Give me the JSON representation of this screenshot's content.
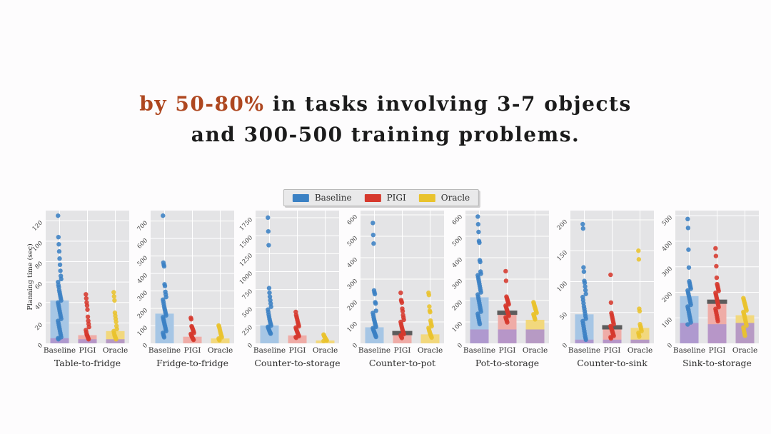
{
  "slide": {
    "heading": {
      "accent_text": "by 50-80%",
      "line1_rest": " in tasks involving 3-7 objects",
      "line2": "and 300-500 training problems.",
      "accent_color": "#ae4720",
      "text_color": "#1b1b1b"
    }
  },
  "legend": {
    "entries": [
      {
        "label": "Baseline",
        "color": "#3b81c4"
      },
      {
        "label": "PIGI",
        "color": "#d6392d"
      },
      {
        "label": "Oracle",
        "color": "#e9c32d"
      }
    ]
  },
  "figure": {
    "ylabel": "Planning time (sec)",
    "colors": {
      "plot_bg": "#e4e4e6",
      "grid": "#ffffff",
      "tick_text": "#3f3f3f",
      "purple": "#b093cc",
      "cap": "#5c5c5c",
      "series": [
        {
          "name": "Baseline",
          "dot": "#3b81c4",
          "bar": "#a6c6e5"
        },
        {
          "name": "PIGI",
          "dot": "#d6392d",
          "bar": "#efaca7"
        },
        {
          "name": "Oracle",
          "dot": "#e9c32d",
          "bar": "#f2d87d"
        }
      ]
    }
  },
  "chart_data": [
    {
      "type": "bar",
      "title": "Table-to-fridge",
      "categories": [
        "Baseline",
        "PIGI",
        "Oracle"
      ],
      "ylim": [
        0,
        130
      ],
      "yticks": [
        0,
        20,
        40,
        60,
        80,
        100,
        120
      ],
      "series": [
        {
          "name": "Baseline",
          "bar": 42,
          "purple": 5,
          "cap": null,
          "points": [
            125,
            104,
            97,
            90,
            83,
            77,
            71,
            66,
            63,
            60,
            57,
            55,
            52,
            50,
            48,
            46,
            44,
            42,
            40,
            38,
            36,
            34,
            32,
            30,
            28,
            26,
            24,
            22,
            20,
            18,
            16,
            14,
            12,
            10,
            8,
            6,
            5,
            4
          ]
        },
        {
          "name": "PIGI",
          "bar": 8,
          "purple": 4,
          "cap": null,
          "points": [
            48,
            44,
            40,
            37,
            33,
            26,
            22,
            19,
            16,
            13,
            11,
            9,
            8,
            7,
            6,
            5,
            4
          ]
        },
        {
          "name": "Oracle",
          "bar": 12,
          "purple": 4,
          "cap": null,
          "points": [
            50,
            46,
            42,
            30,
            27,
            24,
            21,
            17,
            14,
            12,
            10,
            8,
            7,
            6,
            5,
            4
          ]
        }
      ]
    },
    {
      "type": "bar",
      "title": "Fridge-to-fridge",
      "categories": [
        "Baseline",
        "PIGI",
        "Oracle"
      ],
      "ylim": [
        0,
        760
      ],
      "yticks": [
        0,
        100,
        200,
        300,
        400,
        500,
        600,
        700
      ],
      "series": [
        {
          "name": "Baseline",
          "bar": 170,
          "purple": 0,
          "cap": null,
          "points": [
            731,
            462,
            450,
            441,
            338,
            328,
            295,
            280,
            265,
            250,
            238,
            225,
            212,
            200,
            190,
            180,
            170,
            160,
            150,
            140,
            130,
            120,
            110,
            100,
            90,
            80,
            70,
            60,
            50,
            42,
            35
          ]
        },
        {
          "name": "PIGI",
          "bar": 38,
          "purple": 0,
          "cap": null,
          "points": [
            146,
            138,
            98,
            92,
            86,
            80,
            74,
            68,
            60,
            54,
            48,
            42,
            37,
            32,
            28,
            24,
            20
          ]
        },
        {
          "name": "Oracle",
          "bar": 28,
          "purple": 0,
          "cap": null,
          "points": [
            102,
            96,
            88,
            78,
            68,
            58,
            50,
            42,
            35,
            28,
            22,
            18
          ]
        }
      ]
    },
    {
      "type": "bar",
      "title": "Counter-to-storage",
      "categories": [
        "Baseline",
        "PIGI",
        "Oracle"
      ],
      "ylim": [
        0,
        1850
      ],
      "yticks": [
        0,
        250,
        500,
        750,
        1000,
        1250,
        1500,
        1750
      ],
      "series": [
        {
          "name": "Baseline",
          "bar": 250,
          "purple": 0,
          "cap": null,
          "points": [
            1752,
            1560,
            1368,
            770,
            705,
            650,
            600,
            555,
            510,
            470,
            435,
            400,
            370,
            340,
            315,
            290,
            268,
            248,
            230,
            215,
            200,
            185,
            170,
            158,
            146,
            135
          ]
        },
        {
          "name": "PIGI",
          "bar": 110,
          "purple": 0,
          "cap": null,
          "points": [
            438,
            395,
            372,
            348,
            325,
            300,
            278,
            258,
            238,
            220,
            202,
            185,
            170,
            155,
            140,
            126,
            113,
            100,
            88,
            77
          ]
        },
        {
          "name": "Oracle",
          "bar": 40,
          "purple": 0,
          "cap": null,
          "points": [
            122,
            108,
            95,
            84,
            74,
            64,
            55,
            47,
            40,
            33
          ]
        }
      ]
    },
    {
      "type": "bar",
      "title": "Counter-to-pot",
      "categories": [
        "Baseline",
        "PIGI",
        "Oracle"
      ],
      "ylim": [
        0,
        620
      ],
      "yticks": [
        0,
        100,
        200,
        300,
        400,
        500,
        600
      ],
      "series": [
        {
          "name": "Baseline",
          "bar": 75,
          "purple": 0,
          "cap": null,
          "points": [
            562,
            506,
            466,
            247,
            238,
            230,
            192,
            186,
            152,
            142,
            132,
            122,
            113,
            105,
            97,
            90,
            83,
            77,
            71,
            65,
            60,
            55,
            50,
            45,
            40,
            35,
            30
          ]
        },
        {
          "name": "PIGI",
          "bar": 48,
          "purple": 0,
          "cap": 48,
          "points": [
            236,
            202,
            196,
            190,
            162,
            150,
            132,
            121,
            110,
            100,
            91,
            82,
            74,
            67,
            60,
            54,
            48,
            43,
            38,
            33,
            29,
            25
          ]
        },
        {
          "name": "Oracle",
          "bar": 42,
          "purple": 0,
          "cap": null,
          "points": [
            236,
            226,
            172,
            152,
            146,
            106,
            97,
            88,
            80,
            72,
            65,
            58,
            52,
            46,
            41,
            36,
            31,
            27
          ]
        }
      ]
    },
    {
      "type": "bar",
      "title": "Pot-to-storage",
      "categories": [
        "Baseline",
        "PIGI",
        "Oracle"
      ],
      "ylim": [
        0,
        620
      ],
      "yticks": [
        0,
        100,
        200,
        300,
        400,
        500,
        600
      ],
      "series": [
        {
          "name": "Baseline",
          "bar": 215,
          "purple": 65,
          "cap": null,
          "points": [
            592,
            556,
            520,
            478,
            470,
            388,
            380,
            335,
            325,
            318,
            308,
            298,
            288,
            278,
            268,
            258,
            248,
            238,
            228,
            218,
            208,
            198,
            188,
            178,
            168,
            158,
            148,
            138,
            128,
            118,
            108,
            98,
            90
          ]
        },
        {
          "name": "PIGI",
          "bar": 140,
          "purple": 65,
          "cap": 143,
          "points": [
            337,
            292,
            218,
            212,
            206,
            200,
            194,
            188,
            182,
            176,
            170,
            164,
            158,
            152,
            146,
            140,
            134,
            128,
            122,
            116,
            110,
            104,
            98
          ]
        },
        {
          "name": "Oracle",
          "bar": 110,
          "purple": 65,
          "cap": null,
          "points": [
            192,
            186,
            178,
            172,
            166,
            160,
            154,
            148,
            142,
            136,
            130,
            124,
            118,
            112
          ]
        }
      ]
    },
    {
      "type": "bar",
      "title": "Counter-to-sink",
      "categories": [
        "Baseline",
        "PIGI",
        "Oracle"
      ],
      "ylim": [
        0,
        215
      ],
      "yticks": [
        0,
        50,
        100,
        150,
        200
      ],
      "series": [
        {
          "name": "Baseline",
          "bar": 47,
          "purple": 6,
          "cap": null,
          "points": [
            193,
            186,
            123,
            116,
            101,
            98,
            92,
            86,
            80,
            75,
            70,
            65,
            60,
            56,
            52,
            48,
            44,
            40,
            36,
            32,
            28,
            24,
            20,
            16,
            12,
            9,
            6
          ]
        },
        {
          "name": "PIGI",
          "bar": 26,
          "purple": 6,
          "cap": 26,
          "points": [
            111,
            66,
            49,
            46,
            43,
            40,
            37,
            34,
            31,
            28,
            26,
            24,
            22,
            20,
            18,
            16,
            14,
            12,
            10,
            8
          ]
        },
        {
          "name": "Oracle",
          "bar": 25,
          "purple": 6,
          "cap": null,
          "points": [
            150,
            136,
            56,
            52,
            31,
            28,
            26,
            23,
            20,
            17,
            14,
            11
          ]
        }
      ]
    },
    {
      "type": "bar",
      "title": "Sink-to-storage",
      "categories": [
        "Baseline",
        "PIGI",
        "Oracle"
      ],
      "ylim": [
        0,
        520
      ],
      "yticks": [
        0,
        100,
        200,
        300,
        400,
        500
      ],
      "series": [
        {
          "name": "Baseline",
          "bar": 185,
          "purple": 80,
          "cap": null,
          "points": [
            487,
            452,
            367,
            297,
            243,
            236,
            228,
            221,
            214,
            207,
            200,
            193,
            186,
            179,
            172,
            165,
            158,
            151,
            144,
            137,
            130,
            122,
            114,
            106,
            98,
            90,
            82,
            74
          ]
        },
        {
          "name": "PIGI",
          "bar": 165,
          "purple": 75,
          "cap": 163,
          "points": [
            372,
            342,
            302,
            257,
            232,
            226,
            219,
            212,
            205,
            198,
            191,
            184,
            177,
            170,
            163,
            156,
            149,
            142,
            135,
            127,
            119,
            111,
            103,
            95,
            87
          ]
        },
        {
          "name": "Oracle",
          "bar": 110,
          "purple": 80,
          "cap": null,
          "points": [
            177,
            171,
            165,
            159,
            153,
            147,
            141,
            135,
            129,
            123,
            117,
            111,
            105,
            99,
            92,
            85,
            78,
            70,
            62,
            54,
            46,
            38,
            30
          ]
        }
      ]
    }
  ]
}
